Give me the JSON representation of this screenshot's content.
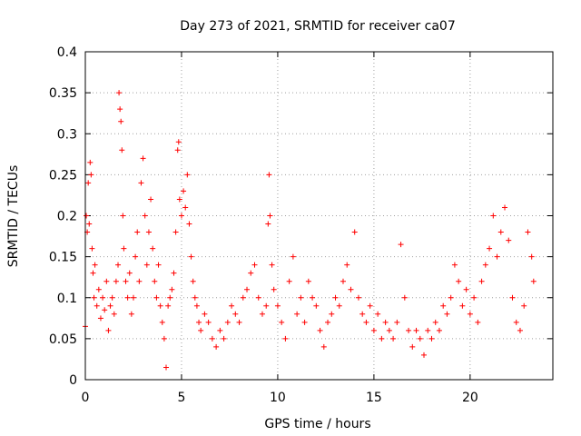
{
  "chart_data": {
    "type": "scatter",
    "title": "Day 273 of 2021, SRMTID for receiver ca07",
    "xlabel": "GPS time / hours",
    "ylabel": "SRMTID / TECUs",
    "xlim": [
      0,
      24.3
    ],
    "ylim": [
      0,
      0.4
    ],
    "x_ticks": [
      0,
      5,
      10,
      15,
      20
    ],
    "x_tick_labels": [
      "0",
      "5",
      "10",
      "15",
      "20"
    ],
    "y_ticks": [
      0,
      0.05,
      0.1,
      0.15,
      0.2,
      0.25,
      0.3,
      0.35,
      0.4
    ],
    "y_tick_labels": [
      "0",
      "0.05",
      "0.1",
      "0.15",
      "0.2",
      "0.25",
      "0.3",
      "0.35",
      "0.4"
    ],
    "grid": true,
    "marker": "+",
    "marker_color": "#ff0000",
    "series": [
      {
        "name": "SRMTID",
        "points": [
          [
            0.0,
            0.065
          ],
          [
            0.05,
            0.2
          ],
          [
            0.1,
            0.18
          ],
          [
            0.15,
            0.24
          ],
          [
            0.2,
            0.19
          ],
          [
            0.25,
            0.265
          ],
          [
            0.3,
            0.25
          ],
          [
            0.35,
            0.16
          ],
          [
            0.4,
            0.13
          ],
          [
            0.45,
            0.1
          ],
          [
            0.5,
            0.14
          ],
          [
            0.6,
            0.09
          ],
          [
            0.7,
            0.11
          ],
          [
            0.8,
            0.075
          ],
          [
            0.9,
            0.1
          ],
          [
            1.0,
            0.085
          ],
          [
            1.1,
            0.12
          ],
          [
            1.2,
            0.06
          ],
          [
            1.3,
            0.09
          ],
          [
            1.4,
            0.1
          ],
          [
            1.5,
            0.08
          ],
          [
            1.6,
            0.12
          ],
          [
            1.7,
            0.14
          ],
          [
            1.75,
            0.35
          ],
          [
            1.8,
            0.33
          ],
          [
            1.85,
            0.315
          ],
          [
            1.9,
            0.28
          ],
          [
            1.95,
            0.2
          ],
          [
            2.0,
            0.16
          ],
          [
            2.1,
            0.12
          ],
          [
            2.2,
            0.1
          ],
          [
            2.3,
            0.13
          ],
          [
            2.4,
            0.08
          ],
          [
            2.5,
            0.1
          ],
          [
            2.6,
            0.15
          ],
          [
            2.7,
            0.18
          ],
          [
            2.8,
            0.12
          ],
          [
            2.9,
            0.24
          ],
          [
            3.0,
            0.27
          ],
          [
            3.1,
            0.2
          ],
          [
            3.2,
            0.14
          ],
          [
            3.3,
            0.18
          ],
          [
            3.4,
            0.22
          ],
          [
            3.5,
            0.16
          ],
          [
            3.6,
            0.12
          ],
          [
            3.7,
            0.1
          ],
          [
            3.8,
            0.14
          ],
          [
            3.9,
            0.09
          ],
          [
            4.0,
            0.07
          ],
          [
            4.1,
            0.05
          ],
          [
            4.2,
            0.015
          ],
          [
            4.3,
            0.09
          ],
          [
            4.4,
            0.1
          ],
          [
            4.5,
            0.11
          ],
          [
            4.6,
            0.13
          ],
          [
            4.7,
            0.18
          ],
          [
            4.8,
            0.28
          ],
          [
            4.85,
            0.29
          ],
          [
            4.9,
            0.22
          ],
          [
            5.0,
            0.2
          ],
          [
            5.1,
            0.23
          ],
          [
            5.2,
            0.21
          ],
          [
            5.3,
            0.25
          ],
          [
            5.4,
            0.19
          ],
          [
            5.5,
            0.15
          ],
          [
            5.6,
            0.12
          ],
          [
            5.7,
            0.1
          ],
          [
            5.8,
            0.09
          ],
          [
            5.9,
            0.07
          ],
          [
            6.0,
            0.06
          ],
          [
            6.2,
            0.08
          ],
          [
            6.4,
            0.07
          ],
          [
            6.6,
            0.05
          ],
          [
            6.8,
            0.04
          ],
          [
            7.0,
            0.06
          ],
          [
            7.2,
            0.05
          ],
          [
            7.4,
            0.07
          ],
          [
            7.6,
            0.09
          ],
          [
            7.8,
            0.08
          ],
          [
            8.0,
            0.07
          ],
          [
            8.2,
            0.1
          ],
          [
            8.4,
            0.11
          ],
          [
            8.6,
            0.13
          ],
          [
            8.8,
            0.14
          ],
          [
            9.0,
            0.1
          ],
          [
            9.2,
            0.08
          ],
          [
            9.4,
            0.09
          ],
          [
            9.5,
            0.19
          ],
          [
            9.55,
            0.25
          ],
          [
            9.6,
            0.2
          ],
          [
            9.7,
            0.14
          ],
          [
            9.8,
            0.11
          ],
          [
            10.0,
            0.09
          ],
          [
            10.2,
            0.07
          ],
          [
            10.4,
            0.05
          ],
          [
            10.6,
            0.12
          ],
          [
            10.8,
            0.15
          ],
          [
            11.0,
            0.08
          ],
          [
            11.2,
            0.1
          ],
          [
            11.4,
            0.07
          ],
          [
            11.6,
            0.12
          ],
          [
            11.8,
            0.1
          ],
          [
            12.0,
            0.09
          ],
          [
            12.2,
            0.06
          ],
          [
            12.4,
            0.04
          ],
          [
            12.6,
            0.07
          ],
          [
            12.8,
            0.08
          ],
          [
            13.0,
            0.1
          ],
          [
            13.2,
            0.09
          ],
          [
            13.4,
            0.12
          ],
          [
            13.6,
            0.14
          ],
          [
            13.8,
            0.11
          ],
          [
            14.0,
            0.18
          ],
          [
            14.2,
            0.1
          ],
          [
            14.4,
            0.08
          ],
          [
            14.6,
            0.07
          ],
          [
            14.8,
            0.09
          ],
          [
            15.0,
            0.06
          ],
          [
            15.2,
            0.08
          ],
          [
            15.4,
            0.05
          ],
          [
            15.6,
            0.07
          ],
          [
            15.8,
            0.06
          ],
          [
            16.0,
            0.05
          ],
          [
            16.2,
            0.07
          ],
          [
            16.4,
            0.165
          ],
          [
            16.6,
            0.1
          ],
          [
            16.8,
            0.06
          ],
          [
            17.0,
            0.04
          ],
          [
            17.2,
            0.06
          ],
          [
            17.4,
            0.05
          ],
          [
            17.6,
            0.03
          ],
          [
            17.8,
            0.06
          ],
          [
            18.0,
            0.05
          ],
          [
            18.2,
            0.07
          ],
          [
            18.4,
            0.06
          ],
          [
            18.6,
            0.09
          ],
          [
            18.8,
            0.08
          ],
          [
            19.0,
            0.1
          ],
          [
            19.2,
            0.14
          ],
          [
            19.4,
            0.12
          ],
          [
            19.6,
            0.09
          ],
          [
            19.8,
            0.11
          ],
          [
            20.0,
            0.08
          ],
          [
            20.2,
            0.1
          ],
          [
            20.4,
            0.07
          ],
          [
            20.6,
            0.12
          ],
          [
            20.8,
            0.14
          ],
          [
            21.0,
            0.16
          ],
          [
            21.2,
            0.2
          ],
          [
            21.4,
            0.15
          ],
          [
            21.6,
            0.18
          ],
          [
            21.8,
            0.21
          ],
          [
            22.0,
            0.17
          ],
          [
            22.2,
            0.1
          ],
          [
            22.4,
            0.07
          ],
          [
            22.6,
            0.06
          ],
          [
            22.8,
            0.09
          ],
          [
            23.0,
            0.18
          ],
          [
            23.2,
            0.15
          ],
          [
            23.3,
            0.12
          ]
        ]
      }
    ]
  }
}
